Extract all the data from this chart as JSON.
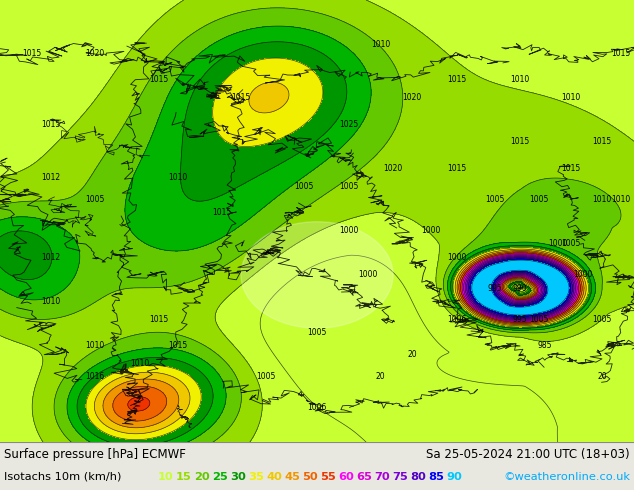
{
  "title_line1": "Surface pressure [hPa] ECMWF",
  "title_line2": "Sa 25-05-2024 21:00 UTC (18+03)",
  "legend_label": "Isotachs 10m (km/h)",
  "copyright": "©weatheronline.co.uk",
  "isotach_values": [
    10,
    15,
    20,
    25,
    30,
    35,
    40,
    45,
    50,
    55,
    60,
    65,
    70,
    75,
    80,
    85,
    90
  ],
  "isotach_colors": [
    "#c8ff32",
    "#96dc00",
    "#64c800",
    "#00b400",
    "#009600",
    "#f0f000",
    "#f0c800",
    "#f09600",
    "#f06400",
    "#f03200",
    "#ff00ff",
    "#dc00dc",
    "#aa00dc",
    "#7800dc",
    "#5000c8",
    "#0000ff",
    "#00c8ff"
  ],
  "bg_color": "#d2e8c8",
  "footer_bg": "#e8e8e0",
  "footer_line1_color": "#000000",
  "footer_line2_color": "#000000",
  "copyright_color": "#00aaff",
  "fig_width": 6.34,
  "fig_height": 4.9,
  "dpi": 100,
  "map_green_base": "#aad280",
  "map_light_green": "#c8e6a0",
  "map_yellow_green": "#dcf064",
  "map_white": "#f0f8f0",
  "map_pink": "#f0c8c8",
  "map_blue_light": "#c8dce6"
}
